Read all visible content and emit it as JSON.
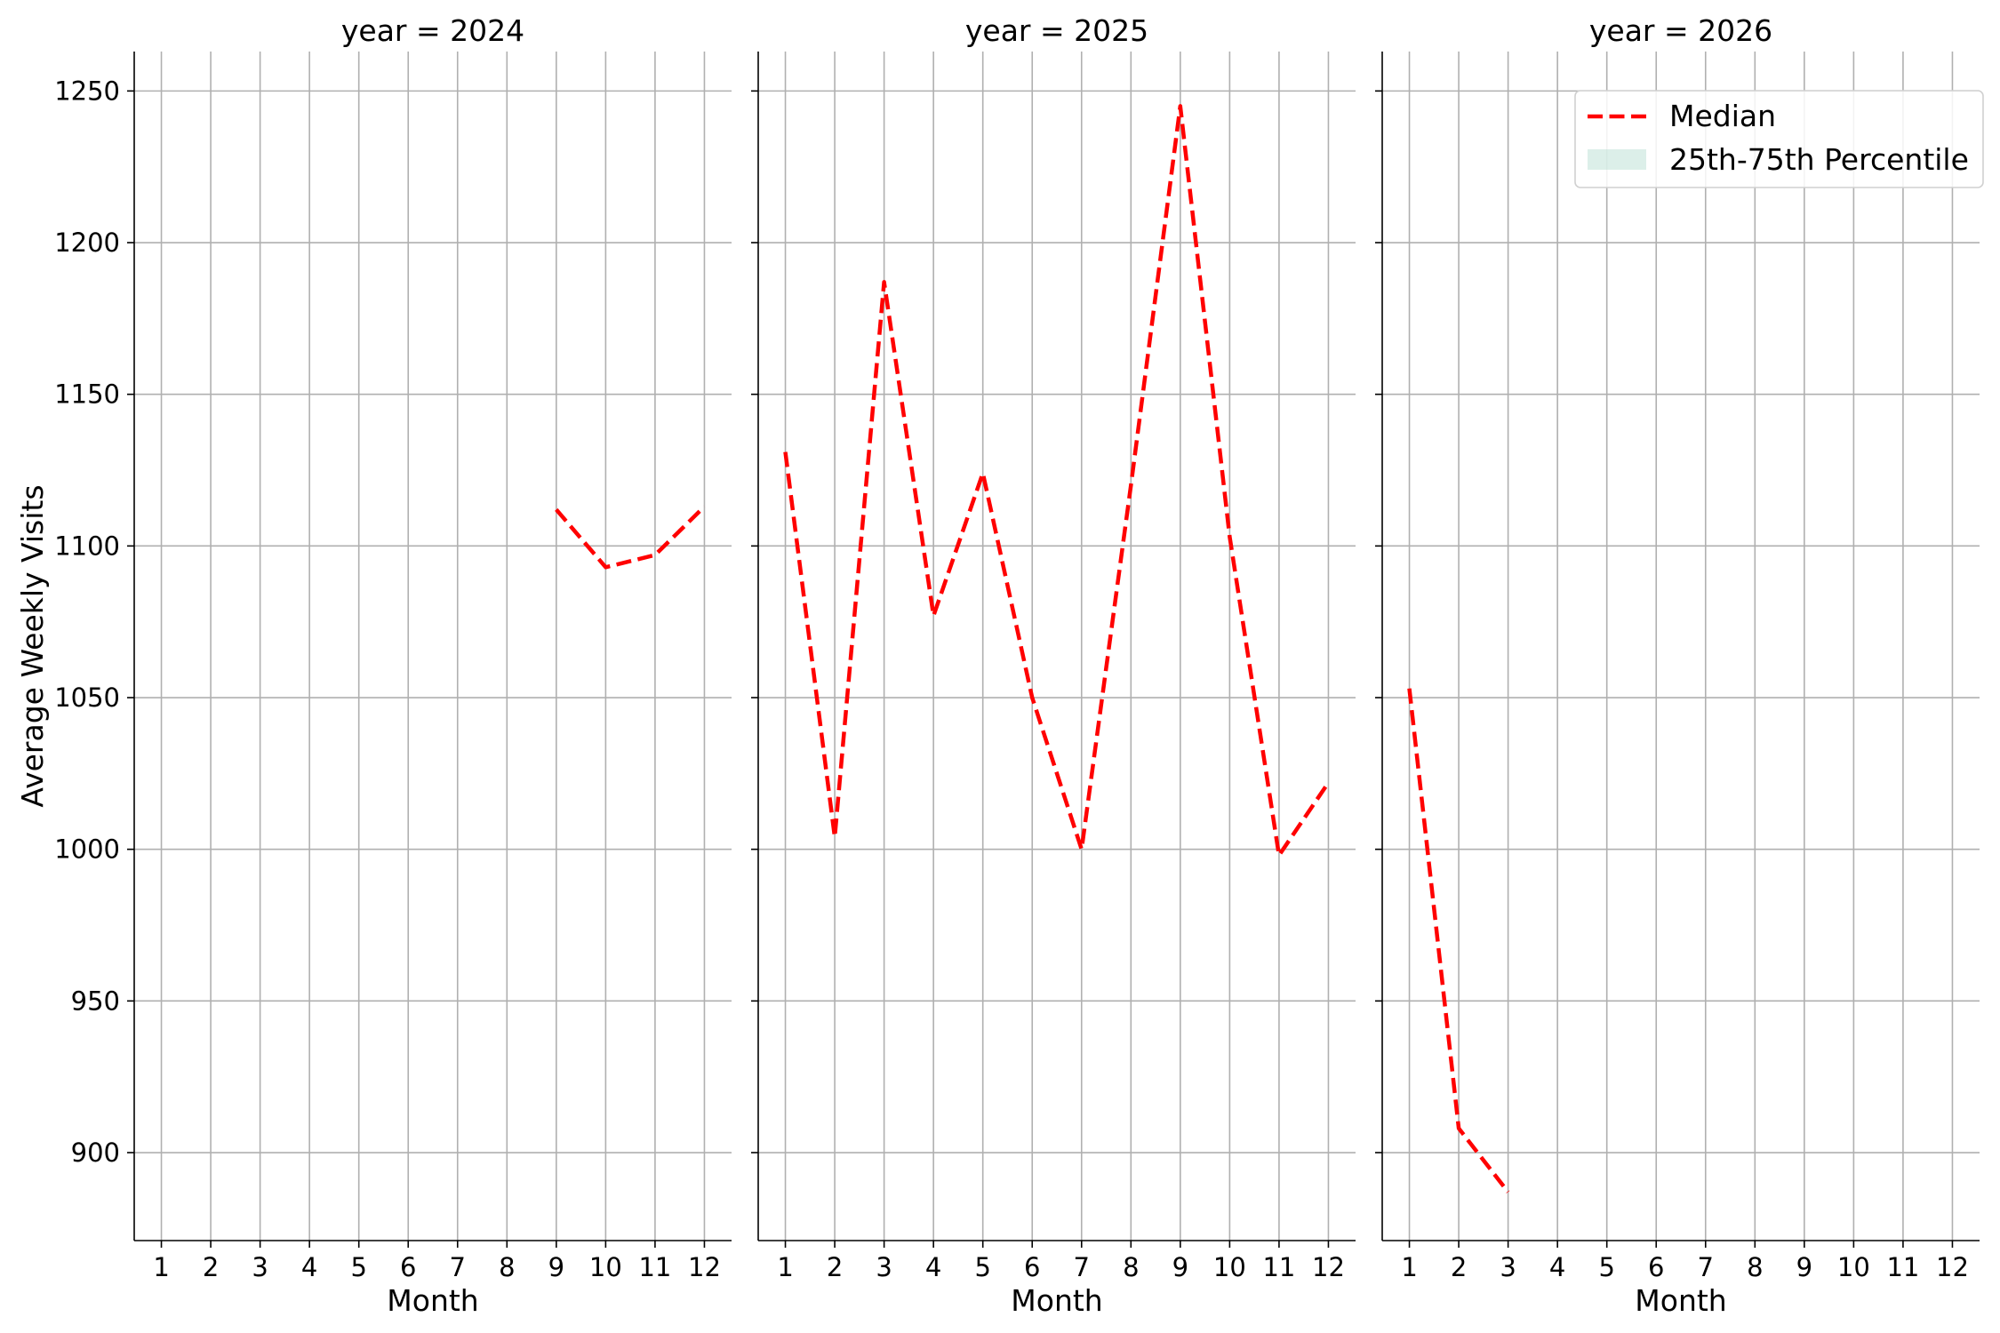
{
  "chart_data": {
    "type": "line",
    "ylabel": "Average Weekly Visits",
    "ylim": [
      871,
      1263
    ],
    "yticks": [
      900,
      950,
      1000,
      1050,
      1100,
      1150,
      1200,
      1250
    ],
    "xlim": [
      0.45,
      12.55
    ],
    "xticks": [
      1,
      2,
      3,
      4,
      5,
      6,
      7,
      8,
      9,
      10,
      11,
      12
    ],
    "grid": true,
    "legend": {
      "placement": "top-right of last panel",
      "entries": [
        {
          "label": "Median",
          "style": "dashed-line",
          "color": "#ff0000"
        },
        {
          "label": "25th-75th Percentile",
          "style": "band",
          "color": "#a8d8c8"
        }
      ]
    },
    "panels": [
      {
        "title": "year = 2024",
        "xlabel": "Month",
        "series": [
          {
            "x": [
              9,
              10,
              11,
              12
            ],
            "y": [
              1112,
              1093,
              1097,
              1113
            ]
          }
        ]
      },
      {
        "title": "year = 2025",
        "xlabel": "Month",
        "series": [
          {
            "x": [
              1,
              2,
              3,
              4,
              5,
              6,
              7,
              8,
              9,
              10,
              11,
              12
            ],
            "y": [
              1131,
              1004,
              1187,
              1077,
              1124,
              1050,
              1000,
              1120,
              1245,
              1103,
              998,
              1022
            ]
          }
        ]
      },
      {
        "title": "year = 2026",
        "xlabel": "Month",
        "series": [
          {
            "x": [
              1,
              2,
              3
            ],
            "y": [
              1053,
              908,
              887
            ]
          }
        ]
      }
    ]
  },
  "colors": {
    "median": "#ff0000",
    "band": "#a8d8c8",
    "grid": "#b0b0b0",
    "spine": "#000000"
  }
}
